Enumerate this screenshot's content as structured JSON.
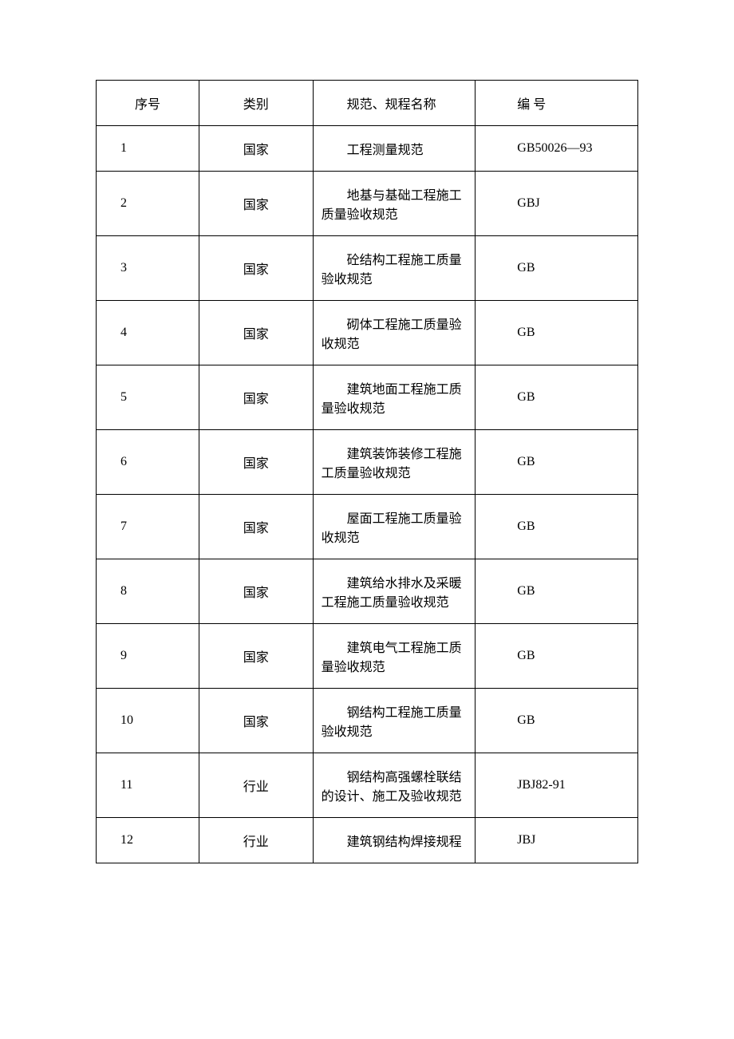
{
  "table": {
    "columns": [
      "序号",
      "类别",
      "规范、规程名称",
      "编 号"
    ],
    "col_widths_pct": [
      19,
      21,
      30,
      30
    ],
    "border_color": "#000000",
    "background_color": "#ffffff",
    "font_family": "SimSun",
    "font_size_pt": 12,
    "rows": [
      {
        "seq": "1",
        "cat": "国家",
        "name": "工程测量规范",
        "code": "GB50026—93"
      },
      {
        "seq": "2",
        "cat": "国家",
        "name": "地基与基础工程施工质量验收规范",
        "code": "GBJ"
      },
      {
        "seq": "3",
        "cat": "国家",
        "name": "砼结构工程施工质量验收规范",
        "code": "GB"
      },
      {
        "seq": "4",
        "cat": "国家",
        "name": "砌体工程施工质量验收规范",
        "code": "GB"
      },
      {
        "seq": "5",
        "cat": "国家",
        "name": "建筑地面工程施工质量验收规范",
        "code": "GB"
      },
      {
        "seq": "6",
        "cat": "国家",
        "name": "建筑装饰装修工程施工质量验收规范",
        "code": "GB"
      },
      {
        "seq": "7",
        "cat": "国家",
        "name": "屋面工程施工质量验收规范",
        "code": "GB"
      },
      {
        "seq": "8",
        "cat": "国家",
        "name": "建筑给水排水及采暖工程施工质量验收规范",
        "code": "GB"
      },
      {
        "seq": "9",
        "cat": "国家",
        "name": "建筑电气工程施工质量验收规范",
        "code": "GB"
      },
      {
        "seq": "10",
        "cat": "国家",
        "name": "钢结构工程施工质量验收规范",
        "code": "GB"
      },
      {
        "seq": "11",
        "cat": "行业",
        "name": "钢结构高强螺栓联结的设计、施工及验收规范",
        "code": "JBJ82-91"
      },
      {
        "seq": "12",
        "cat": "行业",
        "name": "建筑钢结构焊接规程",
        "code": "JBJ"
      }
    ]
  }
}
